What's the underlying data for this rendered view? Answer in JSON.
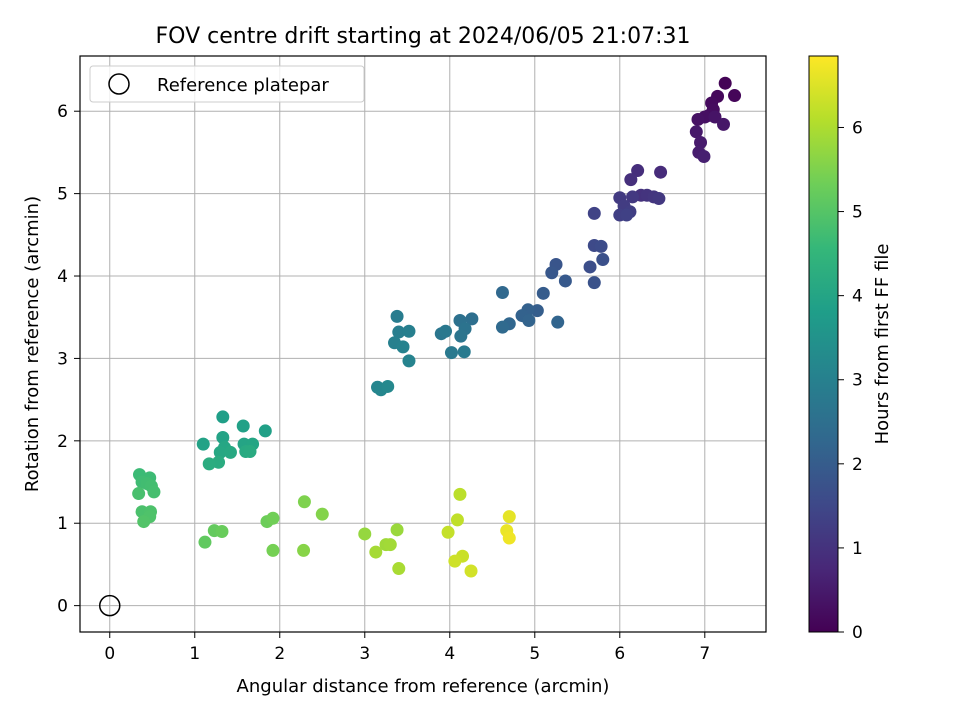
{
  "chart_data": {
    "type": "scatter",
    "title": "FOV centre drift starting at 2024/06/05 21:07:31",
    "xlabel": "Angular distance from reference (arcmin)",
    "ylabel": "Rotation from reference (arcmin)",
    "xlim": [
      -0.35,
      7.72
    ],
    "ylim": [
      -0.32,
      6.67
    ],
    "xticks": [
      0,
      1,
      2,
      3,
      4,
      5,
      6,
      7
    ],
    "yticks": [
      0,
      1,
      2,
      3,
      4,
      5,
      6
    ],
    "grid": true,
    "legend": {
      "placement": "upper-left",
      "entries": [
        "Reference platepar"
      ]
    },
    "colorbar": {
      "label": "Hours from first FF file",
      "range": [
        0,
        6.85
      ],
      "ticks": [
        0,
        1,
        2,
        3,
        4,
        5,
        6
      ],
      "colormap": "viridis",
      "colors": [
        "#440154",
        "#482878",
        "#3e4989",
        "#31688e",
        "#26828e",
        "#1f9e89",
        "#35b779",
        "#6ece58",
        "#b5de2b",
        "#fde725"
      ]
    },
    "reference_point": {
      "x": 0,
      "y": 0
    },
    "series": [
      {
        "points": [
          [
            7.24,
            6.34,
            0.05
          ],
          [
            7.35,
            6.19,
            0.1
          ],
          [
            7.15,
            6.18,
            0.14
          ],
          [
            7.08,
            6.1,
            0.18
          ],
          [
            7.1,
            6.02,
            0.22
          ],
          [
            7.05,
            5.95,
            0.26
          ],
          [
            7.0,
            5.93,
            0.3
          ],
          [
            6.92,
            5.9,
            0.34
          ],
          [
            7.12,
            5.93,
            0.38
          ],
          [
            7.22,
            5.84,
            0.42
          ],
          [
            6.9,
            5.75,
            0.46
          ],
          [
            6.95,
            5.62,
            0.5
          ],
          [
            6.93,
            5.5,
            0.55
          ],
          [
            6.99,
            5.45,
            0.6
          ],
          [
            6.48,
            5.26,
            0.85
          ],
          [
            6.21,
            5.28,
            0.9
          ],
          [
            6.13,
            5.17,
            0.95
          ],
          [
            6.25,
            4.98,
            1.0
          ],
          [
            6.32,
            4.98,
            1.04
          ],
          [
            6.4,
            4.96,
            1.08
          ],
          [
            6.46,
            4.94,
            1.12
          ],
          [
            6.15,
            4.96,
            1.15
          ],
          [
            6.0,
            4.95,
            1.18
          ],
          [
            6.05,
            4.85,
            1.22
          ],
          [
            6.12,
            4.78,
            1.26
          ],
          [
            6.0,
            4.74,
            1.3
          ],
          [
            6.08,
            4.74,
            1.34
          ],
          [
            5.7,
            4.76,
            1.38
          ],
          [
            5.7,
            4.37,
            1.55
          ],
          [
            5.78,
            4.36,
            1.6
          ],
          [
            5.65,
            4.11,
            1.65
          ],
          [
            5.8,
            4.2,
            1.7
          ],
          [
            5.7,
            3.92,
            1.75
          ],
          [
            5.25,
            4.14,
            1.82
          ],
          [
            5.2,
            4.04,
            1.87
          ],
          [
            5.36,
            3.94,
            1.92
          ],
          [
            5.1,
            3.79,
            1.98
          ],
          [
            5.03,
            3.58,
            2.05
          ],
          [
            4.92,
            3.59,
            2.1
          ],
          [
            4.85,
            3.52,
            2.14
          ],
          [
            4.93,
            3.46,
            2.18
          ],
          [
            5.27,
            3.44,
            2.22
          ],
          [
            4.7,
            3.42,
            2.26
          ],
          [
            4.62,
            3.8,
            2.3
          ],
          [
            4.62,
            3.38,
            2.34
          ],
          [
            4.26,
            3.48,
            2.5
          ],
          [
            4.12,
            3.46,
            2.55
          ],
          [
            4.18,
            3.36,
            2.6
          ],
          [
            4.13,
            3.27,
            2.65
          ],
          [
            3.9,
            3.3,
            2.7
          ],
          [
            3.95,
            3.33,
            2.74
          ],
          [
            4.02,
            3.07,
            2.78
          ],
          [
            4.17,
            3.08,
            2.82
          ],
          [
            3.38,
            3.51,
            2.88
          ],
          [
            3.4,
            3.32,
            2.92
          ],
          [
            3.52,
            3.33,
            2.96
          ],
          [
            3.35,
            3.19,
            3.0
          ],
          [
            3.45,
            3.14,
            3.04
          ],
          [
            3.52,
            2.97,
            3.08
          ],
          [
            3.15,
            2.65,
            3.12
          ],
          [
            3.19,
            2.62,
            3.16
          ],
          [
            3.27,
            2.66,
            3.2
          ],
          [
            1.33,
            2.29,
            3.85
          ],
          [
            1.83,
            2.12,
            3.88
          ],
          [
            1.57,
            2.18,
            3.91
          ],
          [
            1.1,
            1.96,
            3.94
          ],
          [
            1.33,
            2.04,
            3.97
          ],
          [
            1.58,
            1.96,
            4.0
          ],
          [
            1.68,
            1.96,
            4.03
          ],
          [
            1.35,
            1.92,
            4.06
          ],
          [
            1.3,
            1.86,
            4.09
          ],
          [
            1.42,
            1.86,
            4.12
          ],
          [
            1.6,
            1.87,
            4.15
          ],
          [
            1.65,
            1.87,
            4.18
          ],
          [
            1.28,
            1.74,
            4.21
          ],
          [
            1.17,
            1.72,
            4.24
          ],
          [
            0.35,
            1.59,
            4.65
          ],
          [
            0.47,
            1.55,
            4.68
          ],
          [
            0.38,
            1.5,
            4.71
          ],
          [
            0.44,
            1.48,
            4.74
          ],
          [
            0.49,
            1.45,
            4.77
          ],
          [
            0.52,
            1.38,
            4.8
          ],
          [
            0.34,
            1.36,
            4.83
          ],
          [
            0.38,
            1.14,
            4.86
          ],
          [
            0.48,
            1.14,
            4.89
          ],
          [
            0.47,
            1.08,
            4.92
          ],
          [
            0.4,
            1.02,
            4.95
          ],
          [
            1.12,
            0.77,
            5.15
          ],
          [
            1.23,
            0.91,
            5.2
          ],
          [
            1.32,
            0.9,
            5.25
          ],
          [
            1.85,
            1.02,
            5.3
          ],
          [
            1.92,
            1.06,
            5.35
          ],
          [
            1.92,
            0.67,
            5.4
          ],
          [
            2.29,
            1.26,
            5.5
          ],
          [
            2.5,
            1.11,
            5.55
          ],
          [
            2.28,
            0.67,
            5.6
          ],
          [
            3.0,
            0.87,
            5.75
          ],
          [
            3.38,
            0.92,
            5.8
          ],
          [
            3.25,
            0.74,
            5.85
          ],
          [
            3.3,
            0.74,
            5.88
          ],
          [
            3.13,
            0.65,
            5.92
          ],
          [
            3.4,
            0.45,
            5.96
          ],
          [
            4.12,
            1.35,
            6.15
          ],
          [
            4.09,
            1.04,
            6.2
          ],
          [
            3.98,
            0.89,
            6.25
          ],
          [
            4.15,
            0.6,
            6.3
          ],
          [
            4.06,
            0.54,
            6.35
          ],
          [
            4.25,
            0.42,
            6.4
          ],
          [
            4.7,
            1.08,
            6.6
          ],
          [
            4.67,
            0.91,
            6.65
          ],
          [
            4.7,
            0.82,
            6.7
          ]
        ]
      }
    ]
  }
}
